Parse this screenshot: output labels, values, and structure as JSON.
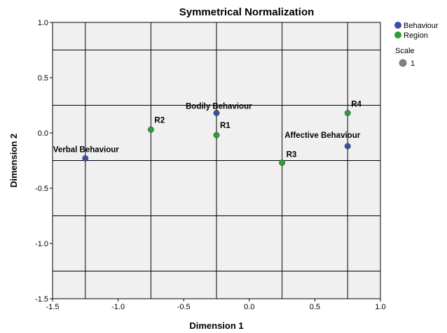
{
  "chart_data": {
    "type": "scatter",
    "title": "Symmetrical Normalization",
    "xlabel": "Dimension 1",
    "ylabel": "Dimension 2",
    "xlim": [
      -1.5,
      1.0
    ],
    "ylim": [
      -1.5,
      1.0
    ],
    "x_ticks": [
      "-1.5",
      "-1.0",
      "-0.5",
      "0.0",
      "0.5",
      "1.0"
    ],
    "y_ticks": [
      "1.0",
      "0.5",
      "0.0",
      "-0.5",
      "-1.0",
      "-1.5"
    ],
    "reference_lines": {
      "x": [
        -1.25,
        -0.75,
        -0.25,
        0.25,
        0.75
      ],
      "y": [
        0.75,
        0.25,
        -0.25,
        -0.75,
        -1.25
      ]
    },
    "series": [
      {
        "name": "Behaviour",
        "color": "#3a4fa0",
        "points": [
          {
            "label": "Bodily Behaviour",
            "x": -0.25,
            "y": 0.18
          },
          {
            "label": "Verbal Behaviour",
            "x": -1.25,
            "y": -0.23
          },
          {
            "label": "Affective Behaviour",
            "x": 0.75,
            "y": -0.12
          }
        ]
      },
      {
        "name": "Region",
        "color": "#2e9c3a",
        "points": [
          {
            "label": "R1",
            "x": -0.25,
            "y": -0.02
          },
          {
            "label": "R2",
            "x": -0.75,
            "y": 0.03
          },
          {
            "label": "R3",
            "x": 0.25,
            "y": -0.27
          },
          {
            "label": "R4",
            "x": 0.75,
            "y": 0.18
          }
        ]
      }
    ],
    "legend": {
      "position": "top-right",
      "scale_title": "Scale",
      "scale_value": "1",
      "scale_color": "#808080"
    },
    "grid": true,
    "background_color": "#f0f0f0"
  }
}
